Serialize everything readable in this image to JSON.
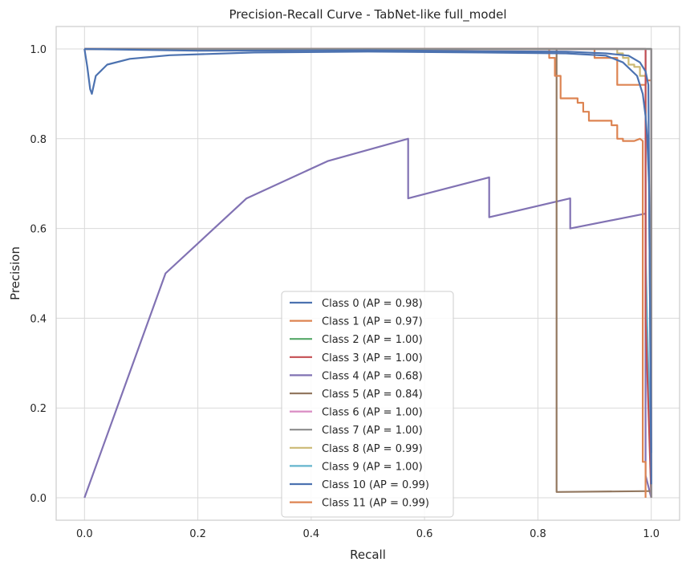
{
  "chart_data": {
    "type": "line",
    "title": "Precision-Recall Curve - TabNet-like full_model",
    "xlabel": "Recall",
    "ylabel": "Precision",
    "xlim": [
      -0.05,
      1.05
    ],
    "ylim": [
      -0.05,
      1.05
    ],
    "xticks": [
      0.0,
      0.2,
      0.4,
      0.6,
      0.8,
      1.0
    ],
    "yticks": [
      0.0,
      0.2,
      0.4,
      0.6,
      0.8,
      1.0
    ],
    "xtick_labels": [
      "0.0",
      "0.2",
      "0.4",
      "0.6",
      "0.8",
      "1.0"
    ],
    "ytick_labels": [
      "0.0",
      "0.2",
      "0.4",
      "0.6",
      "0.8",
      "1.0"
    ],
    "grid": true,
    "legend_position": "lower-center",
    "series": [
      {
        "name": "Class 0 (AP = 0.98)",
        "color": "#4c72b0",
        "points": [
          [
            0,
            1.0
          ],
          [
            0.005,
            0.96
          ],
          [
            0.01,
            0.91
          ],
          [
            0.013,
            0.9
          ],
          [
            0.02,
            0.94
          ],
          [
            0.04,
            0.965
          ],
          [
            0.08,
            0.978
          ],
          [
            0.15,
            0.986
          ],
          [
            0.3,
            0.992
          ],
          [
            0.5,
            0.994
          ],
          [
            0.7,
            0.992
          ],
          [
            0.85,
            0.99
          ],
          [
            0.92,
            0.985
          ],
          [
            0.95,
            0.97
          ],
          [
            0.975,
            0.94
          ],
          [
            0.985,
            0.9
          ],
          [
            0.99,
            0.85
          ],
          [
            0.993,
            0.8
          ],
          [
            0.996,
            0.7
          ],
          [
            0.998,
            0.4
          ],
          [
            1.0,
            0.1
          ]
        ]
      },
      {
        "name": "Class 1 (AP = 0.97)",
        "color": "#dd8452",
        "points": [
          [
            0,
            1.0
          ],
          [
            0.82,
            1.0
          ],
          [
            0.82,
            0.98
          ],
          [
            0.83,
            0.98
          ],
          [
            0.83,
            0.94
          ],
          [
            0.84,
            0.94
          ],
          [
            0.84,
            0.89
          ],
          [
            0.87,
            0.89
          ],
          [
            0.87,
            0.88
          ],
          [
            0.88,
            0.88
          ],
          [
            0.88,
            0.86
          ],
          [
            0.89,
            0.86
          ],
          [
            0.89,
            0.84
          ],
          [
            0.93,
            0.84
          ],
          [
            0.93,
            0.83
          ],
          [
            0.94,
            0.83
          ],
          [
            0.94,
            0.8
          ],
          [
            0.95,
            0.8
          ],
          [
            0.95,
            0.795
          ],
          [
            0.97,
            0.795
          ],
          [
            0.98,
            0.8
          ],
          [
            0.985,
            0.795
          ],
          [
            0.985,
            0.08
          ],
          [
            0.99,
            0.08
          ],
          [
            0.99,
            0.0
          ]
        ]
      },
      {
        "name": "Class 2 (AP = 1.00)",
        "color": "#55a868",
        "points": [
          [
            0,
            1.0
          ],
          [
            1.0,
            1.0
          ],
          [
            1.0,
            0.0
          ]
        ]
      },
      {
        "name": "Class 3 (AP = 1.00)",
        "color": "#c44e52",
        "points": [
          [
            0,
            1.0
          ],
          [
            0.99,
            1.0
          ],
          [
            0.99,
            0.4
          ],
          [
            1.0,
            0.0
          ]
        ]
      },
      {
        "name": "Class 4 (AP = 0.68)",
        "color": "#8172b3",
        "points": [
          [
            0,
            0.0
          ],
          [
            0.143,
            0.5
          ],
          [
            0.286,
            0.667
          ],
          [
            0.429,
            0.75
          ],
          [
            0.571,
            0.8
          ],
          [
            0.571,
            0.667
          ],
          [
            0.714,
            0.714
          ],
          [
            0.714,
            0.625
          ],
          [
            0.857,
            0.667
          ],
          [
            0.857,
            0.6
          ],
          [
            0.99,
            0.633
          ],
          [
            0.99,
            0.05
          ],
          [
            1.0,
            0.0
          ]
        ]
      },
      {
        "name": "Class 5 (AP = 0.84)",
        "color": "#937860",
        "points": [
          [
            0,
            1.0
          ],
          [
            0.833,
            1.0
          ],
          [
            0.833,
            0.013
          ],
          [
            1.0,
            0.015
          ]
        ]
      },
      {
        "name": "Class 6 (AP = 1.00)",
        "color": "#da8bc3",
        "points": [
          [
            0,
            1.0
          ],
          [
            1.0,
            1.0
          ],
          [
            1.0,
            0.0
          ]
        ]
      },
      {
        "name": "Class 7 (AP = 1.00)",
        "color": "#8c8c8c",
        "points": [
          [
            0,
            1.0
          ],
          [
            1.0,
            1.0
          ],
          [
            1.0,
            0.0
          ]
        ]
      },
      {
        "name": "Class 8 (AP = 0.99)",
        "color": "#ccb974",
        "points": [
          [
            0,
            1.0
          ],
          [
            0.94,
            1.0
          ],
          [
            0.94,
            0.99
          ],
          [
            0.95,
            0.99
          ],
          [
            0.95,
            0.98
          ],
          [
            0.96,
            0.98
          ],
          [
            0.96,
            0.965
          ],
          [
            0.97,
            0.965
          ],
          [
            0.97,
            0.96
          ],
          [
            0.98,
            0.96
          ],
          [
            0.98,
            0.94
          ],
          [
            0.99,
            0.94
          ],
          [
            0.99,
            0.41
          ]
        ]
      },
      {
        "name": "Class 9 (AP = 1.00)",
        "color": "#64b5cd",
        "points": [
          [
            0,
            1.0
          ],
          [
            0.99,
            1.0
          ],
          [
            0.99,
            0.55
          ],
          [
            1.0,
            0.0
          ]
        ]
      },
      {
        "name": "Class 10 (AP = 0.99)",
        "color": "#4c72b0",
        "points": [
          [
            0,
            1.0
          ],
          [
            0.2,
            0.996
          ],
          [
            0.5,
            0.997
          ],
          [
            0.7,
            0.995
          ],
          [
            0.85,
            0.994
          ],
          [
            0.92,
            0.99
          ],
          [
            0.96,
            0.985
          ],
          [
            0.98,
            0.97
          ],
          [
            0.99,
            0.95
          ],
          [
            0.995,
            0.92
          ],
          [
            1.0,
            0.03
          ]
        ]
      },
      {
        "name": "Class 11 (AP = 0.99)",
        "color": "#dd8452",
        "points": [
          [
            0,
            1.0
          ],
          [
            0.9,
            1.0
          ],
          [
            0.9,
            0.98
          ],
          [
            0.94,
            0.98
          ],
          [
            0.94,
            0.92
          ],
          [
            0.99,
            0.92
          ],
          [
            0.99,
            0.93
          ],
          [
            1.0,
            0.93
          ],
          [
            1.0,
            0.0
          ]
        ]
      }
    ]
  }
}
